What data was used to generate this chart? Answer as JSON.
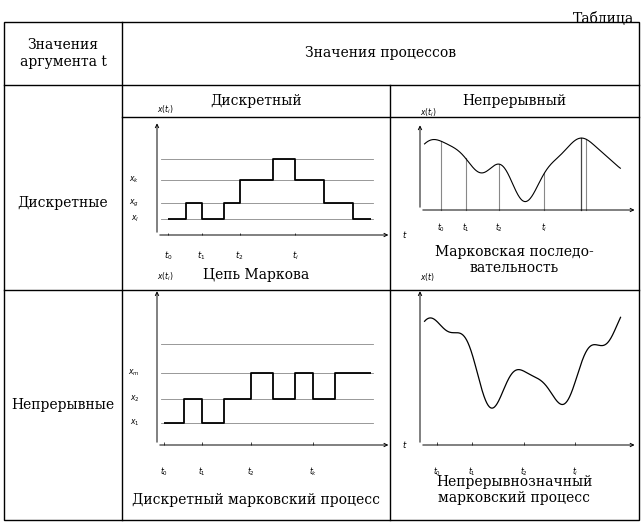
{
  "title": "Таблица",
  "header_row1_col1": "Значения\nаргумента t",
  "header_row1_col2": "Значения процессов",
  "header_row2_col2": "Дискретный",
  "header_row2_col3": "Непрерывный",
  "row1_col1": "Дискретные",
  "row2_col1": "Непрерывные",
  "label_chain": "Цепь Маркова",
  "label_markov_seq": "Марковская последо-\nвательность",
  "label_discrete_markov": "Дискретный марковский процесс",
  "label_continuous_markov": "Непрерывнозначный\nмарковский процесс",
  "bg_color": "#ffffff",
  "line_color": "#000000",
  "grid_line_color": "#888888",
  "fig_width": 6.43,
  "fig_height": 5.24,
  "dpi": 100
}
